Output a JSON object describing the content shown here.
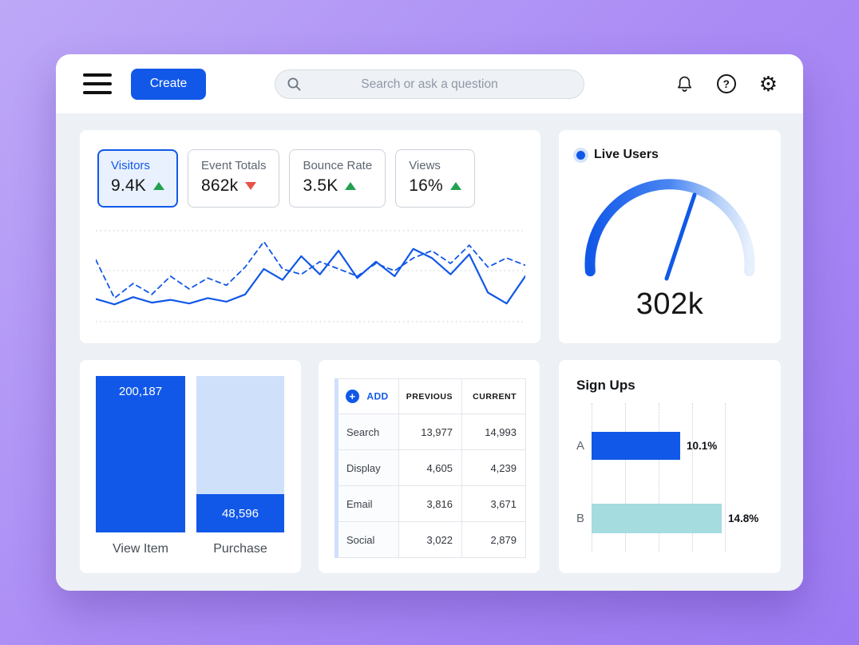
{
  "header": {
    "create_label": "Create",
    "search_placeholder": "Search or ask a question"
  },
  "icons": {
    "plus": "+",
    "help": "?",
    "gear": "⚙"
  },
  "metric_tabs": [
    {
      "label": "Visitors",
      "value": "9.4K",
      "trend": "up",
      "selected": true
    },
    {
      "label": "Event Totals",
      "value": "862k",
      "trend": "down",
      "selected": false
    },
    {
      "label": "Bounce Rate",
      "value": "3.5K",
      "trend": "up",
      "selected": false
    },
    {
      "label": "Views",
      "value": "16%",
      "trend": "up",
      "selected": false
    }
  ],
  "live_users": {
    "label": "Live Users",
    "value": "302k"
  },
  "funnel": {
    "value_labels": [
      "200,187",
      "48,596"
    ],
    "labels": [
      "View Item",
      "Purchase"
    ]
  },
  "table": {
    "add_label": "ADD",
    "columns": [
      "PREVIOUS",
      "CURRENT"
    ],
    "rows": [
      {
        "label": "Search",
        "previous": "13,977",
        "current": "14,993"
      },
      {
        "label": "Display",
        "previous": "4,605",
        "current": "4,239"
      },
      {
        "label": "Email",
        "previous": "3,816",
        "current": "3,671"
      },
      {
        "label": "Social",
        "previous": "3,022",
        "current": "2,879"
      }
    ]
  },
  "signups": {
    "title": "Sign Ups",
    "rows": [
      {
        "label": "A",
        "value": "10.1%"
      },
      {
        "label": "B",
        "value": "14.8%"
      }
    ]
  },
  "colors": {
    "accent": "#1158e8",
    "light_blue": "#cfe0fb",
    "teal": "#a5dce0",
    "green_up": "#23a14f",
    "red_down": "#e8524a"
  },
  "chart_data": [
    {
      "type": "line",
      "title": "Visitors trend",
      "ylim": [
        0,
        100
      ],
      "grid": "horizontal-dotted",
      "series": [
        {
          "name": "current",
          "style": "solid",
          "values": [
            25,
            19,
            27,
            21,
            24,
            20,
            26,
            22,
            30,
            58,
            46,
            72,
            52,
            78,
            48,
            66,
            50,
            80,
            70,
            52,
            74,
            32,
            20,
            50
          ]
        },
        {
          "name": "previous",
          "style": "dashed",
          "values": [
            68,
            26,
            42,
            30,
            50,
            36,
            48,
            40,
            60,
            88,
            58,
            52,
            66,
            58,
            50,
            64,
            56,
            70,
            78,
            64,
            84,
            60,
            70,
            62
          ]
        }
      ]
    },
    {
      "type": "gauge",
      "title": "Live Users",
      "value": 302000,
      "value_label": "302k"
    },
    {
      "type": "bar",
      "title": "Conversion funnel",
      "categories": [
        "View Item",
        "Purchase"
      ],
      "values": [
        200187,
        48596
      ],
      "value_labels": [
        "200,187",
        "48,596"
      ]
    },
    {
      "type": "table",
      "columns": [
        "",
        "PREVIOUS",
        "CURRENT"
      ],
      "rows": [
        [
          "Search",
          13977,
          14993
        ],
        [
          "Display",
          4605,
          4239
        ],
        [
          "Email",
          3816,
          3671
        ],
        [
          "Social",
          3022,
          2879
        ]
      ]
    },
    {
      "type": "bar",
      "orientation": "horizontal",
      "title": "Sign Ups",
      "categories": [
        "A",
        "B"
      ],
      "values": [
        10.1,
        14.8
      ],
      "unit": "%",
      "xmax": 15.3,
      "colors": [
        "#1158e8",
        "#a5dce0"
      ]
    }
  ]
}
